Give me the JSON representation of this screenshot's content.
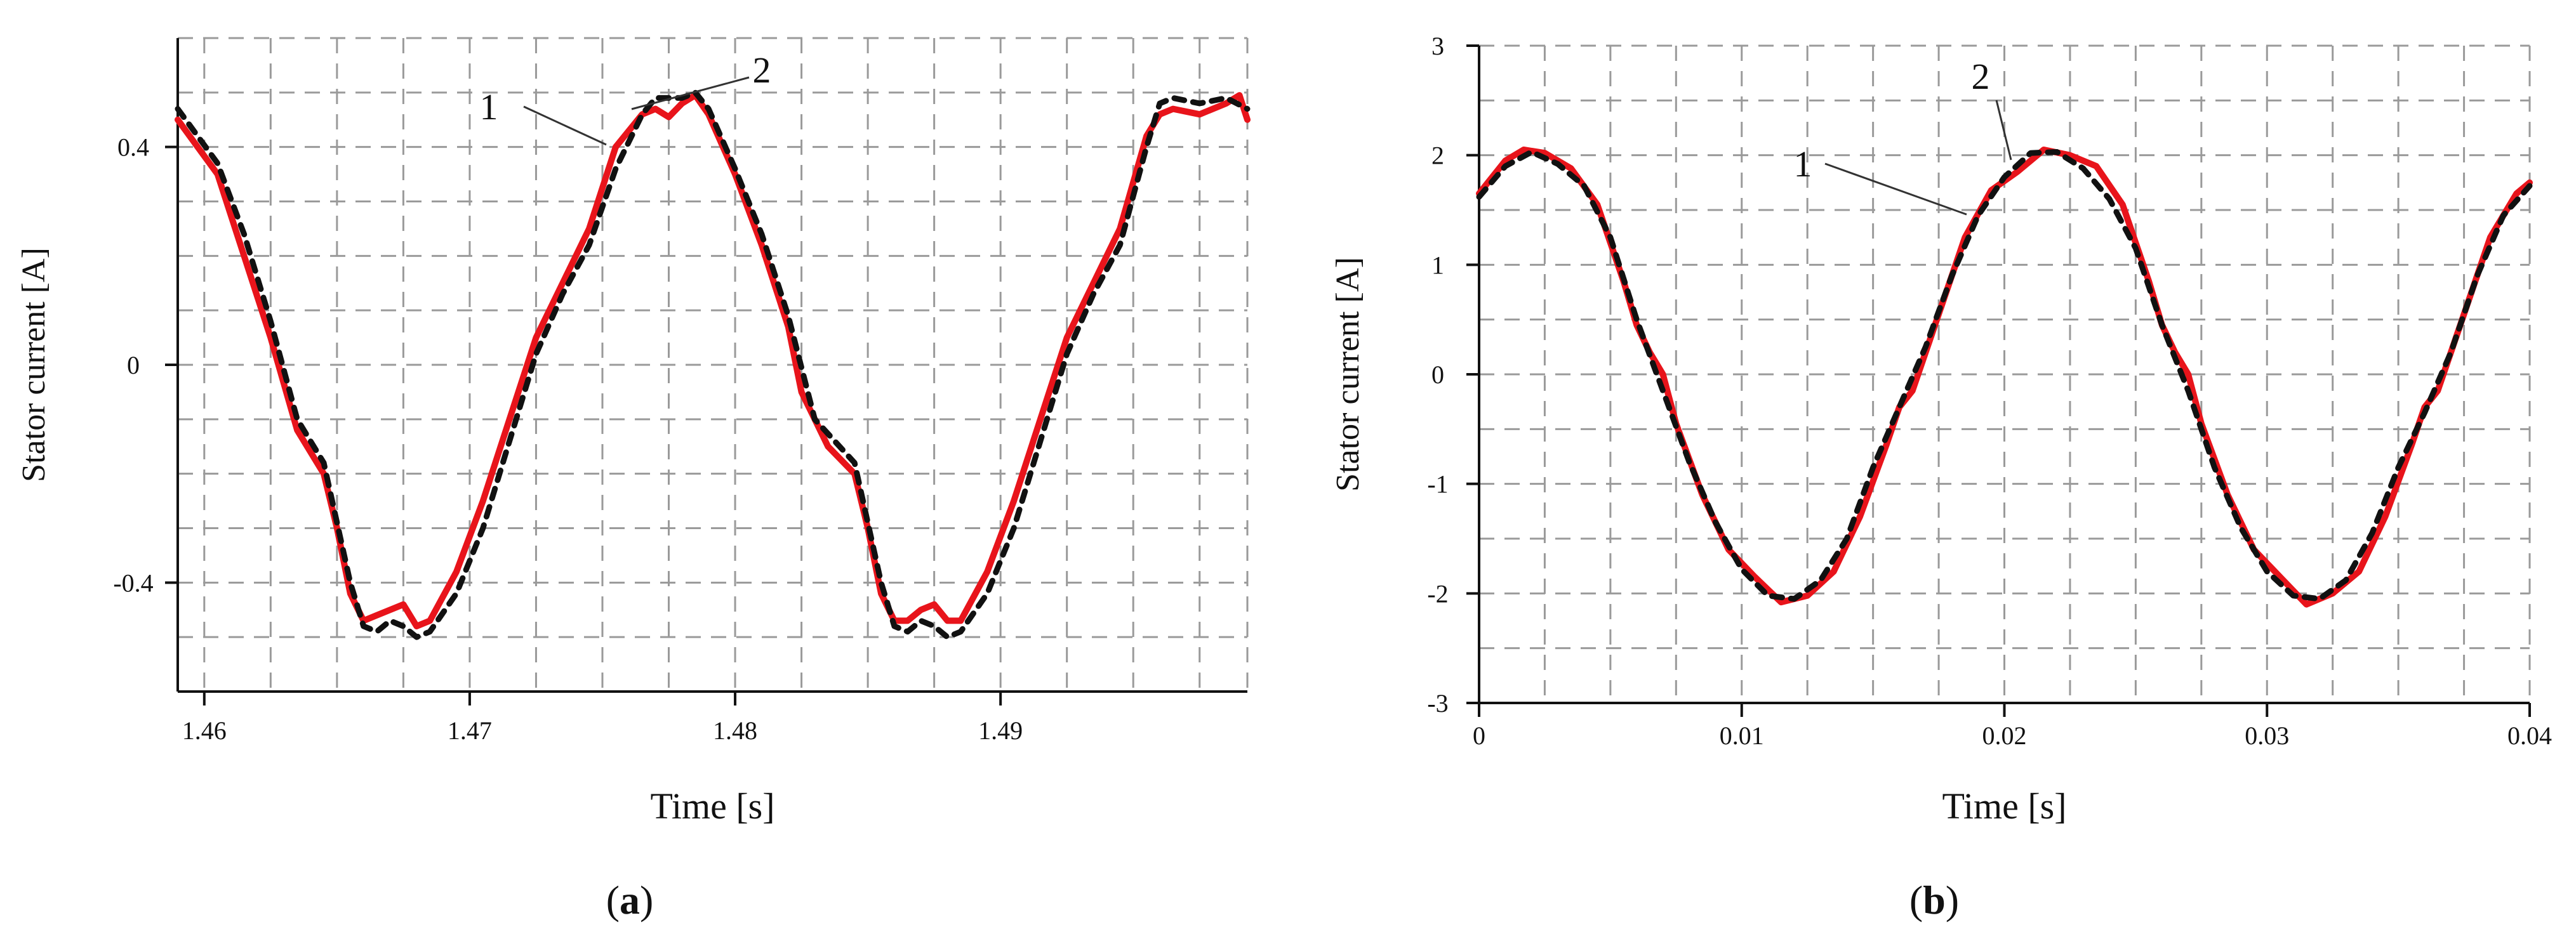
{
  "figure": {
    "panels": [
      {
        "label_open": "(",
        "label_letter": "a",
        "label_close": ")"
      },
      {
        "label_open": "(",
        "label_letter": "b",
        "label_close": ")"
      }
    ]
  },
  "chart_data": [
    {
      "type": "line",
      "xlabel": "Time [s]",
      "ylabel": "Stator current [A]",
      "xlim": [
        1.459,
        1.4993
      ],
      "ylim": [
        -0.6,
        0.6
      ],
      "xticks": [
        1.46,
        1.47,
        1.48,
        1.49
      ],
      "xtick_labels": [
        "1.46",
        "1.47",
        "1.48",
        "1.49"
      ],
      "yticks": [
        -0.4,
        0,
        0.4
      ],
      "ytick_labels": [
        "-0.4",
        "0",
        "0.4"
      ],
      "grid": true,
      "callouts": [
        {
          "text": "1"
        },
        {
          "text": "2"
        }
      ],
      "series": [
        {
          "color": "#e8141b",
          "style": "solid",
          "points": [
            [
              1.459,
              0.45
            ],
            [
              1.4605,
              0.35
            ],
            [
              1.4615,
              0.2
            ],
            [
              1.4625,
              0.05
            ],
            [
              1.4635,
              -0.12
            ],
            [
              1.4645,
              -0.2
            ],
            [
              1.465,
              -0.3
            ],
            [
              1.4655,
              -0.42
            ],
            [
              1.466,
              -0.47
            ],
            [
              1.4665,
              -0.46
            ],
            [
              1.467,
              -0.45
            ],
            [
              1.4675,
              -0.44
            ],
            [
              1.468,
              -0.48
            ],
            [
              1.4685,
              -0.47
            ],
            [
              1.4695,
              -0.38
            ],
            [
              1.4705,
              -0.25
            ],
            [
              1.4715,
              -0.1
            ],
            [
              1.4725,
              0.05
            ],
            [
              1.4735,
              0.15
            ],
            [
              1.4745,
              0.25
            ],
            [
              1.4755,
              0.4
            ],
            [
              1.4765,
              0.46
            ],
            [
              1.477,
              0.47
            ],
            [
              1.4775,
              0.455
            ],
            [
              1.478,
              0.48
            ],
            [
              1.4785,
              0.495
            ],
            [
              1.479,
              0.46
            ],
            [
              1.48,
              0.35
            ],
            [
              1.481,
              0.22
            ],
            [
              1.482,
              0.07
            ],
            [
              1.4825,
              -0.05
            ],
            [
              1.4835,
              -0.15
            ],
            [
              1.4845,
              -0.2
            ],
            [
              1.485,
              -0.3
            ],
            [
              1.4855,
              -0.42
            ],
            [
              1.486,
              -0.47
            ],
            [
              1.4865,
              -0.47
            ],
            [
              1.487,
              -0.45
            ],
            [
              1.4875,
              -0.44
            ],
            [
              1.488,
              -0.47
            ],
            [
              1.4885,
              -0.47
            ],
            [
              1.4895,
              -0.38
            ],
            [
              1.4905,
              -0.25
            ],
            [
              1.4915,
              -0.1
            ],
            [
              1.4925,
              0.05
            ],
            [
              1.4935,
              0.15
            ],
            [
              1.4945,
              0.25
            ],
            [
              1.4955,
              0.42
            ],
            [
              1.496,
              0.46
            ],
            [
              1.4965,
              0.47
            ],
            [
              1.4975,
              0.46
            ],
            [
              1.4985,
              0.48
            ],
            [
              1.499,
              0.495
            ],
            [
              1.4993,
              0.45
            ]
          ]
        },
        {
          "color": "#111111",
          "style": "dashed",
          "points": [
            [
              1.459,
              0.47
            ],
            [
              1.4605,
              0.37
            ],
            [
              1.4615,
              0.24
            ],
            [
              1.4625,
              0.08
            ],
            [
              1.4635,
              -0.1
            ],
            [
              1.4645,
              -0.18
            ],
            [
              1.4655,
              -0.4
            ],
            [
              1.466,
              -0.48
            ],
            [
              1.4665,
              -0.49
            ],
            [
              1.467,
              -0.47
            ],
            [
              1.4675,
              -0.48
            ],
            [
              1.468,
              -0.5
            ],
            [
              1.4685,
              -0.49
            ],
            [
              1.4695,
              -0.42
            ],
            [
              1.4705,
              -0.3
            ],
            [
              1.4715,
              -0.14
            ],
            [
              1.4725,
              0.02
            ],
            [
              1.4735,
              0.13
            ],
            [
              1.4745,
              0.22
            ],
            [
              1.4755,
              0.36
            ],
            [
              1.4765,
              0.46
            ],
            [
              1.477,
              0.49
            ],
            [
              1.478,
              0.49
            ],
            [
              1.4785,
              0.5
            ],
            [
              1.479,
              0.47
            ],
            [
              1.48,
              0.36
            ],
            [
              1.481,
              0.24
            ],
            [
              1.482,
              0.09
            ],
            [
              1.483,
              -0.1
            ],
            [
              1.4845,
              -0.18
            ],
            [
              1.4855,
              -0.4
            ],
            [
              1.486,
              -0.48
            ],
            [
              1.4865,
              -0.49
            ],
            [
              1.487,
              -0.47
            ],
            [
              1.4875,
              -0.48
            ],
            [
              1.488,
              -0.5
            ],
            [
              1.4885,
              -0.49
            ],
            [
              1.4895,
              -0.42
            ],
            [
              1.4905,
              -0.3
            ],
            [
              1.4915,
              -0.14
            ],
            [
              1.4925,
              0.02
            ],
            [
              1.4935,
              0.13
            ],
            [
              1.4945,
              0.22
            ],
            [
              1.4955,
              0.4
            ],
            [
              1.496,
              0.48
            ],
            [
              1.4965,
              0.49
            ],
            [
              1.4975,
              0.48
            ],
            [
              1.4985,
              0.49
            ],
            [
              1.4993,
              0.47
            ]
          ]
        }
      ]
    },
    {
      "type": "line",
      "xlabel": "Time [s]",
      "ylabel": "Stator current [A]",
      "xlim": [
        0,
        0.04
      ],
      "ylim": [
        -3,
        3
      ],
      "xticks": [
        0,
        0.01,
        0.02,
        0.03,
        0.04
      ],
      "xtick_labels": [
        "0",
        "0.01",
        "0.02",
        "0.03",
        "0.04"
      ],
      "yticks": [
        -3,
        -2,
        -1,
        0,
        1,
        2,
        3
      ],
      "ytick_labels": [
        "-3",
        "-2",
        "-1",
        "0",
        "1",
        "2",
        "3"
      ],
      "grid": true,
      "callouts": [
        {
          "text": "1"
        },
        {
          "text": "2"
        }
      ],
      "series": [
        {
          "color": "#e8141b",
          "style": "solid",
          "points": [
            [
              0,
              1.65
            ],
            [
              0.001,
              1.95
            ],
            [
              0.0017,
              2.05
            ],
            [
              0.0025,
              2.02
            ],
            [
              0.0035,
              1.88
            ],
            [
              0.0045,
              1.55
            ],
            [
              0.0055,
              0.85
            ],
            [
              0.006,
              0.45
            ],
            [
              0.0065,
              0.2
            ],
            [
              0.007,
              0.0
            ],
            [
              0.0075,
              -0.45
            ],
            [
              0.0085,
              -1.1
            ],
            [
              0.0095,
              -1.6
            ],
            [
              0.0105,
              -1.85
            ],
            [
              0.0115,
              -2.08
            ],
            [
              0.0125,
              -2.02
            ],
            [
              0.0135,
              -1.8
            ],
            [
              0.0145,
              -1.3
            ],
            [
              0.0155,
              -0.65
            ],
            [
              0.016,
              -0.3
            ],
            [
              0.0165,
              -0.15
            ],
            [
              0.0175,
              0.55
            ],
            [
              0.0185,
              1.25
            ],
            [
              0.0195,
              1.68
            ],
            [
              0.0205,
              1.85
            ],
            [
              0.0215,
              2.05
            ],
            [
              0.0225,
              2.0
            ],
            [
              0.0235,
              1.9
            ],
            [
              0.0245,
              1.55
            ],
            [
              0.0255,
              0.85
            ],
            [
              0.026,
              0.45
            ],
            [
              0.0265,
              0.2
            ],
            [
              0.027,
              0.0
            ],
            [
              0.0275,
              -0.45
            ],
            [
              0.0285,
              -1.1
            ],
            [
              0.0295,
              -1.6
            ],
            [
              0.0305,
              -1.85
            ],
            [
              0.0315,
              -2.1
            ],
            [
              0.0325,
              -2.0
            ],
            [
              0.0335,
              -1.8
            ],
            [
              0.0345,
              -1.3
            ],
            [
              0.0355,
              -0.65
            ],
            [
              0.036,
              -0.3
            ],
            [
              0.0365,
              -0.15
            ],
            [
              0.0375,
              0.55
            ],
            [
              0.0385,
              1.25
            ],
            [
              0.0395,
              1.65
            ],
            [
              0.04,
              1.75
            ]
          ]
        },
        {
          "color": "#111111",
          "style": "dashed",
          "points": [
            [
              0,
              1.62
            ],
            [
              0.001,
              1.9
            ],
            [
              0.002,
              2.03
            ],
            [
              0.003,
              1.92
            ],
            [
              0.004,
              1.72
            ],
            [
              0.005,
              1.25
            ],
            [
              0.006,
              0.5
            ],
            [
              0.007,
              -0.15
            ],
            [
              0.008,
              -0.8
            ],
            [
              0.009,
              -1.35
            ],
            [
              0.01,
              -1.78
            ],
            [
              0.011,
              -2.02
            ],
            [
              0.012,
              -2.05
            ],
            [
              0.013,
              -1.88
            ],
            [
              0.014,
              -1.5
            ],
            [
              0.015,
              -0.85
            ],
            [
              0.016,
              -0.3
            ],
            [
              0.017,
              0.25
            ],
            [
              0.018,
              0.9
            ],
            [
              0.019,
              1.45
            ],
            [
              0.02,
              1.8
            ],
            [
              0.021,
              2.02
            ],
            [
              0.022,
              2.03
            ],
            [
              0.023,
              1.88
            ],
            [
              0.024,
              1.6
            ],
            [
              0.025,
              1.15
            ],
            [
              0.026,
              0.45
            ],
            [
              0.027,
              -0.15
            ],
            [
              0.028,
              -0.85
            ],
            [
              0.029,
              -1.4
            ],
            [
              0.03,
              -1.8
            ],
            [
              0.031,
              -2.02
            ],
            [
              0.032,
              -2.05
            ],
            [
              0.033,
              -1.88
            ],
            [
              0.034,
              -1.45
            ],
            [
              0.035,
              -0.85
            ],
            [
              0.036,
              -0.35
            ],
            [
              0.037,
              0.2
            ],
            [
              0.038,
              0.9
            ],
            [
              0.039,
              1.45
            ],
            [
              0.04,
              1.72
            ]
          ]
        }
      ]
    }
  ]
}
